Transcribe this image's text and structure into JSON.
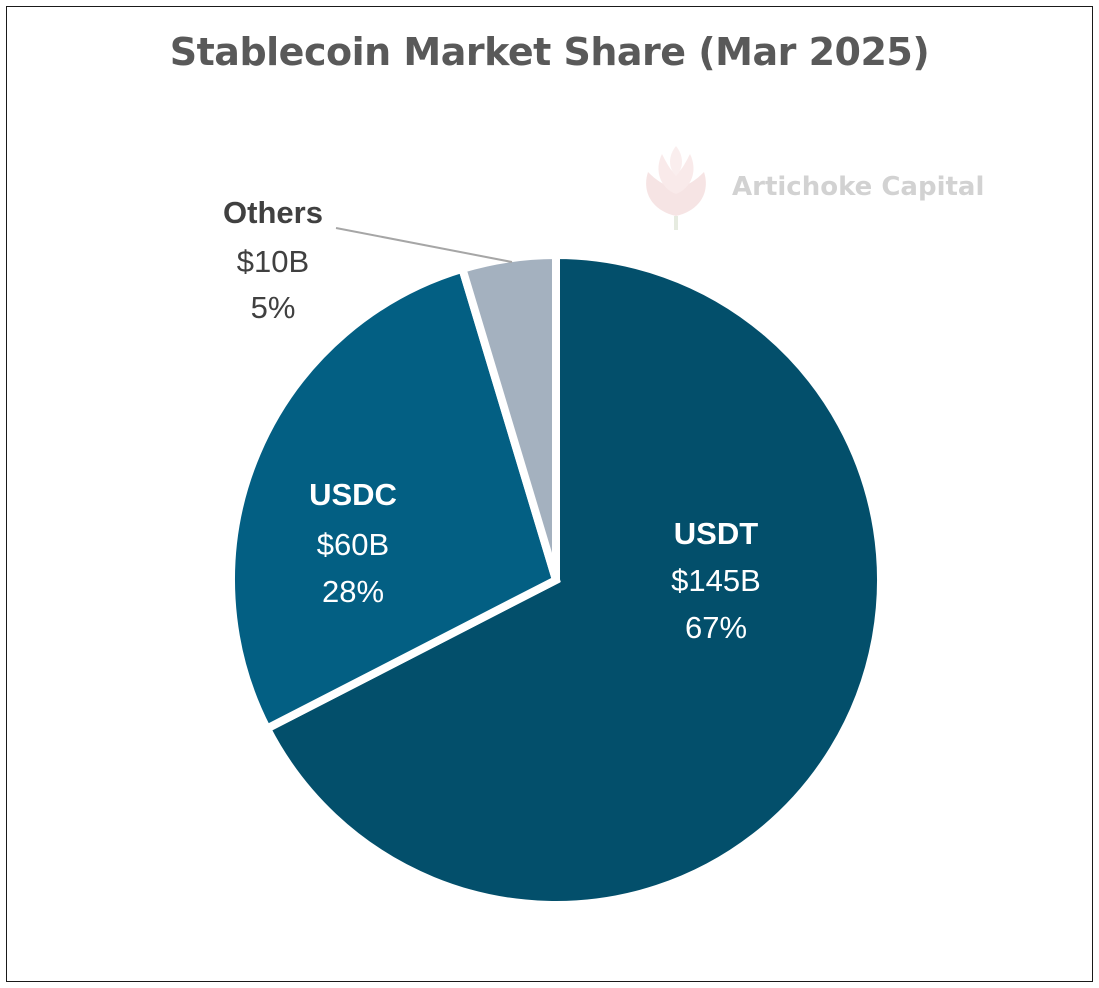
{
  "title": "Stablecoin Market Share (Mar 2025)",
  "watermark": "Artichoke Capital",
  "colors": {
    "usdt": "#034f6b",
    "usdc": "#035f83",
    "others": "#a4b1bf",
    "title": "#595959",
    "label_dark": "#404040",
    "label_light": "#ffffff",
    "leader": "#a6a6a6",
    "watermark": "#d2d2d2"
  },
  "chart_data": {
    "type": "pie",
    "title": "Stablecoin Market Share (Mar 2025)",
    "slices": [
      {
        "name": "USDT",
        "value_label": "$145B",
        "value": 145,
        "percent_label": "67%",
        "percent": 67
      },
      {
        "name": "USDC",
        "value_label": "$60B",
        "value": 60,
        "percent_label": "28%",
        "percent": 28
      },
      {
        "name": "Others",
        "value_label": "$10B",
        "value": 10,
        "percent_label": "5%",
        "percent": 5
      }
    ]
  }
}
